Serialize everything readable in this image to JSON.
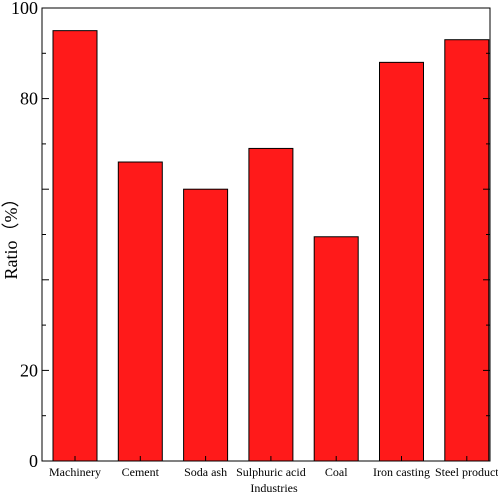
{
  "chart_data": {
    "type": "bar",
    "categories": [
      "Machinery",
      "Cement",
      "Soda ash",
      "Sulphuric acid",
      "Coal",
      "Iron casting",
      "Steel product"
    ],
    "values": [
      95,
      66,
      60,
      69,
      49.5,
      88,
      93
    ],
    "ylabel": "Ratio（%）",
    "xlabel": "Industries",
    "ylim": [
      0,
      100
    ],
    "yticks_labeled": [
      0,
      20,
      80,
      100
    ],
    "grid": false,
    "bar_color": "#ff1a1a"
  }
}
